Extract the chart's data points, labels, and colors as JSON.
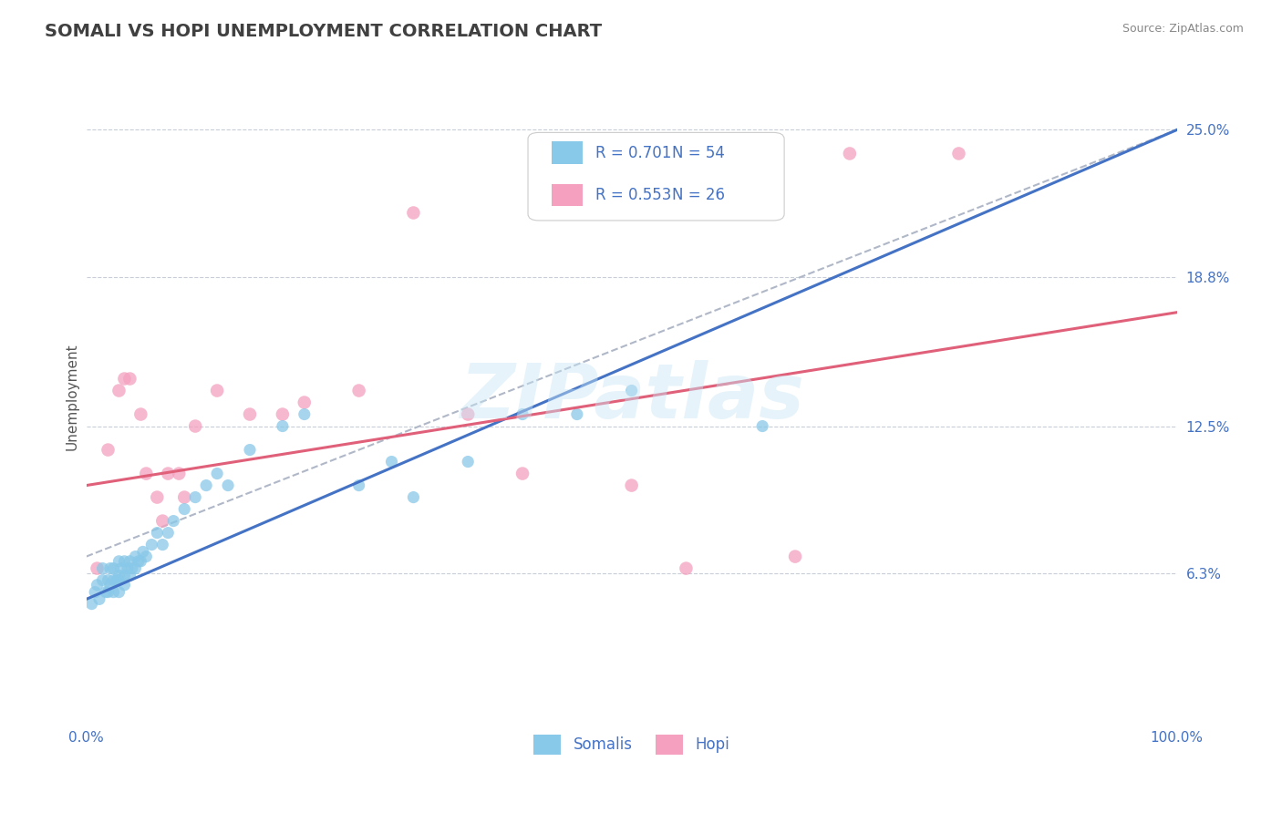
{
  "title": "SOMALI VS HOPI UNEMPLOYMENT CORRELATION CHART",
  "source_text": "Source: ZipAtlas.com",
  "ylabel": "Unemployment",
  "watermark": "ZIPatlas",
  "xlim": [
    0.0,
    1.0
  ],
  "ylim": [
    0.0,
    0.275
  ],
  "ytick_vals": [
    0.063,
    0.125,
    0.188,
    0.25
  ],
  "ytick_labels": [
    "6.3%",
    "12.5%",
    "18.8%",
    "25.0%"
  ],
  "xtick_vals": [
    0.0,
    1.0
  ],
  "xtick_labels": [
    "0.0%",
    "100.0%"
  ],
  "legend_r_somali": "0.701",
  "legend_n_somali": "54",
  "legend_r_hopi": "0.553",
  "legend_n_hopi": "26",
  "somali_color": "#88c8e8",
  "hopi_color": "#f4a0be",
  "somali_line_color": "#4472c4",
  "hopi_line_color": "#e0607a",
  "dashed_line_color": "#b0b8c8",
  "background_color": "#ffffff",
  "grid_color": "#c8cdd8",
  "title_color": "#404040",
  "source_color": "#888888",
  "axis_label_color": "#555555",
  "tick_label_color": "#4472c4",
  "legend_text_color": "#4472c4",
  "somali_scatter_x": [
    0.005,
    0.008,
    0.01,
    0.012,
    0.015,
    0.015,
    0.018,
    0.02,
    0.02,
    0.022,
    0.022,
    0.025,
    0.025,
    0.025,
    0.028,
    0.03,
    0.03,
    0.03,
    0.03,
    0.032,
    0.035,
    0.035,
    0.035,
    0.038,
    0.04,
    0.04,
    0.042,
    0.045,
    0.045,
    0.048,
    0.05,
    0.052,
    0.055,
    0.06,
    0.065,
    0.07,
    0.075,
    0.08,
    0.09,
    0.1,
    0.11,
    0.12,
    0.13,
    0.15,
    0.18,
    0.2,
    0.25,
    0.28,
    0.3,
    0.35,
    0.4,
    0.45,
    0.5,
    0.62
  ],
  "somali_scatter_y": [
    0.05,
    0.055,
    0.058,
    0.052,
    0.06,
    0.065,
    0.055,
    0.055,
    0.06,
    0.058,
    0.065,
    0.055,
    0.06,
    0.065,
    0.06,
    0.055,
    0.06,
    0.062,
    0.068,
    0.065,
    0.058,
    0.062,
    0.068,
    0.065,
    0.062,
    0.068,
    0.065,
    0.065,
    0.07,
    0.068,
    0.068,
    0.072,
    0.07,
    0.075,
    0.08,
    0.075,
    0.08,
    0.085,
    0.09,
    0.095,
    0.1,
    0.105,
    0.1,
    0.115,
    0.125,
    0.13,
    0.1,
    0.11,
    0.095,
    0.11,
    0.13,
    0.13,
    0.14,
    0.125
  ],
  "hopi_scatter_x": [
    0.01,
    0.02,
    0.03,
    0.035,
    0.04,
    0.05,
    0.055,
    0.065,
    0.07,
    0.075,
    0.085,
    0.09,
    0.1,
    0.12,
    0.15,
    0.18,
    0.2,
    0.25,
    0.3,
    0.35,
    0.4,
    0.5,
    0.55,
    0.65,
    0.7,
    0.8
  ],
  "hopi_scatter_y": [
    0.065,
    0.115,
    0.14,
    0.145,
    0.145,
    0.13,
    0.105,
    0.095,
    0.085,
    0.105,
    0.105,
    0.095,
    0.125,
    0.14,
    0.13,
    0.13,
    0.135,
    0.14,
    0.215,
    0.13,
    0.105,
    0.1,
    0.065,
    0.07,
    0.24,
    0.24
  ],
  "somali_line_x0": 0.0,
  "somali_line_y0": 0.052,
  "somali_line_x1": 1.0,
  "somali_line_y1": 0.25,
  "hopi_line_x0": 0.0,
  "hopi_line_y0": 0.1,
  "hopi_line_x1": 1.0,
  "hopi_line_y1": 0.173,
  "dash_line_x0": 0.0,
  "dash_line_y0": 0.07,
  "dash_line_x1": 1.0,
  "dash_line_y1": 0.25
}
